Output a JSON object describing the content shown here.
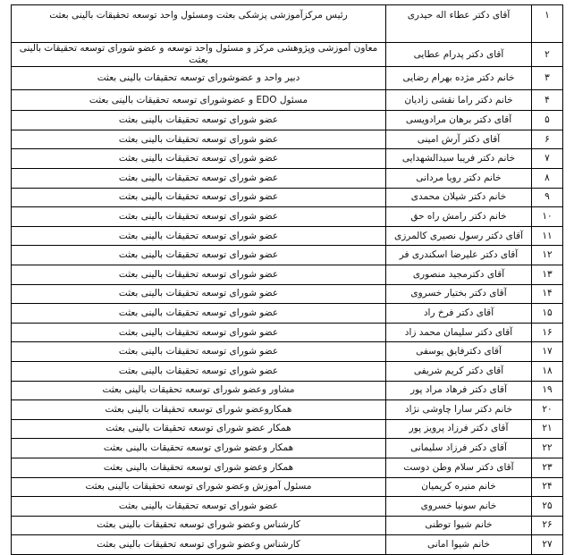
{
  "rows": [
    {
      "num": "۱",
      "name": "آقای دکتر عطاء اله حیدری",
      "role": "رئیس مرکزآموزشی پزشکی بعثت ومسئول واحد توسعه تحقیقات بالینی بعثت"
    },
    {
      "num": "۲",
      "name": "آقای دکتر پدرام عطایی",
      "role": "معاون آموزشی وپژوهشی مرکز و مسئول واحد توسعه و عضو شورای توسعه تحقیقات بالینی بعثت"
    },
    {
      "num": "۳",
      "name": "خانم دکتر مژده بهرام رضایی",
      "role": "دبیر واحد و عضوشورای توسعه تحقیقات بالینی بعثت"
    },
    {
      "num": "۴",
      "name": "خانم دکتر راما نقشی زادیان",
      "role": "مسئول EDO و عضوشورای توسعه تحقیقات بالینی بعثت"
    },
    {
      "num": "۵",
      "name": "آقای دکتر برهان مرادویسی",
      "role": "عضو شورای توسعه تحقیقات بالینی بعثت"
    },
    {
      "num": "۶",
      "name": "آقای دکتر آرش امینی",
      "role": "عضو شورای توسعه تحقیقات بالینی بعثت"
    },
    {
      "num": "۷",
      "name": "خانم دکتر فریبا سیدالشهدایی",
      "role": "عضو شورای توسعه تحقیقات بالینی بعثت"
    },
    {
      "num": "۸",
      "name": "خانم دکتر رویا مردانی",
      "role": "عضو شورای  توسعه تحقیقات بالینی بعثت"
    },
    {
      "num": "۹",
      "name": "خانم دکتر شیلان محمدی",
      "role": "عضو شورای توسعه تحقیقات بالینی بعثت"
    },
    {
      "num": "۱۰",
      "name": "خانم دکتر رامش راه حق",
      "role": "عضو شورای  توسعه تحقیقات بالینی بعثت"
    },
    {
      "num": "۱۱",
      "name": "آقای دکتر رسول نصیری کالمرزی",
      "role": "عضو شورای توسعه تحقیقات بالینی بعثت"
    },
    {
      "num": "۱۲",
      "name": "آقای دکتر علیرضا اسکندری فر",
      "role": "عضو شورای توسعه تحقیقات بالینی بعثت"
    },
    {
      "num": "۱۳",
      "name": "آقای دکترمجید منصوری",
      "role": "عضو شورای  توسعه تحقیقات بالینی بعثت"
    },
    {
      "num": "۱۴",
      "name": "آقای دکتر بختیار خسروی",
      "role": "عضو شورای  توسعه تحقیقات بالینی بعثت"
    },
    {
      "num": "۱۵",
      "name": "آقای دکتر فرخ راد",
      "role": "عضو شورای  توسعه تحقیقات بالینی بعثت"
    },
    {
      "num": "۱۶",
      "name": "آقای دکتر سلیمان محمد زاد",
      "role": "عضو شورای توسعه تحقیقات بالینی بعثت"
    },
    {
      "num": "۱۷",
      "name": "آقای دکترفایق یوسفی",
      "role": "عضو شورای   توسعه تحقیقات بالینی بعثت"
    },
    {
      "num": "۱۸",
      "name": "آقای دکتر کریم شریفی",
      "role": "عضو شورای   توسعه تحقیقات بالینی بعثت"
    },
    {
      "num": "۱۹",
      "name": "آقای دکتر فرهاد مراد پور",
      "role": "مشاور وعضو شورای توسعه تحقیقات بالینی بعثت"
    },
    {
      "num": "۲۰",
      "name": "خانم  دکتر سارا چاوشی نژاد",
      "role": "همکاروعضو شورای توسعه تحقیقات بالینی بعثت"
    },
    {
      "num": "۲۱",
      "name": "آقای دکتر فرزاد پرویز پور",
      "role": "همکار عضو شورای توسعه تحقیقات بالینی بعثت"
    },
    {
      "num": "۲۲",
      "name": "آقای دکتر فرزاد سلیمانی",
      "role": "همکار وعضو شورای  توسعه تحقیقات بالینی بعثت"
    },
    {
      "num": "۲۳",
      "name": "آقای دکتر سلام وطن دوست",
      "role": "همکار  وعضو شورای  توسعه تحقیقات بالینی بعثت"
    },
    {
      "num": "۲۴",
      "name": "خانم  منیره کریمیان",
      "role": "مسئول آموزش وعضو شورای توسعه تحقیقات بالینی بعثت"
    },
    {
      "num": "۲۵",
      "name": "خانم سونیا خسروی",
      "role": "عضو شورای  توسعه تحقیقات بالینی بعثت"
    },
    {
      "num": "۲۶",
      "name": "خانم شیوا توطنی",
      "role": "کارشناس وعضو شورای توسعه تحقیقات بالینی بعثت"
    },
    {
      "num": "۲۷",
      "name": "خانم شیوا امانی",
      "role": "کارشناس وعضو شورای توسعه تحقیقات بالینی بعثت"
    }
  ]
}
